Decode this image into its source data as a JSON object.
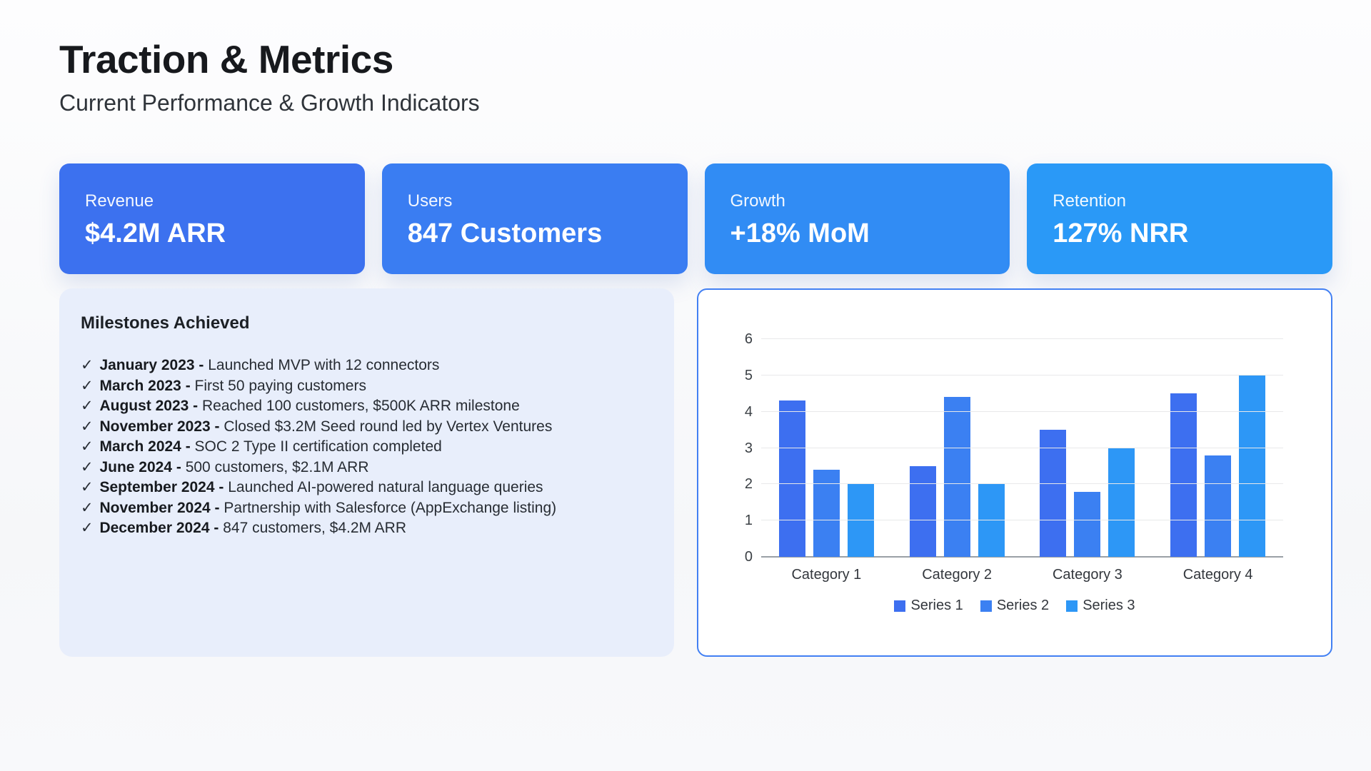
{
  "header": {
    "title": "Traction & Metrics",
    "subtitle": "Current Performance & Growth Indicators"
  },
  "metrics": {
    "cards": [
      {
        "label": "Revenue",
        "value": "$4.2M ARR",
        "color": "#3C71EF"
      },
      {
        "label": "Users",
        "value": "847 Customers",
        "color": "#3A7DF2"
      },
      {
        "label": "Growth",
        "value": "+18% MoM",
        "color": "#318CF4"
      },
      {
        "label": "Retention",
        "value": "127% NRR",
        "color": "#2A99F7"
      }
    ]
  },
  "milestones": {
    "heading": "Milestones Achieved",
    "check_glyph": "✓",
    "items": [
      {
        "label": "January 2023 -",
        "text": "Launched MVP with 12 connectors"
      },
      {
        "label": "March 2023 -",
        "text": "First 50 paying customers"
      },
      {
        "label": "August 2023 -",
        "text": "Reached 100 customers, $500K ARR milestone"
      },
      {
        "label": "November 2023 -",
        "text": "Closed $3.2M Seed round led by Vertex Ventures"
      },
      {
        "label": "March 2024 -",
        "text": "SOC 2 Type II certification completed"
      },
      {
        "label": "June 2024 -",
        "text": "500 customers, $2.1M ARR"
      },
      {
        "label": "September 2024 -",
        "text": "Launched AI-powered natural language queries"
      },
      {
        "label": "November 2024 -",
        "text": "Partnership with Salesforce (AppExchange listing)"
      },
      {
        "label": "December 2024 -",
        "text": "847 customers, $4.2M ARR"
      }
    ]
  },
  "chart_data": {
    "type": "bar",
    "categories": [
      "Category 1",
      "Category 2",
      "Category 3",
      "Category 4"
    ],
    "series": [
      {
        "name": "Series 1",
        "color": "#3D6FF0",
        "values": [
          4.3,
          2.5,
          3.5,
          4.5
        ]
      },
      {
        "name": "Series 2",
        "color": "#3B80F2",
        "values": [
          2.4,
          4.4,
          1.8,
          2.8
        ]
      },
      {
        "name": "Series 3",
        "color": "#2D97F6",
        "values": [
          2.0,
          2.0,
          3.0,
          5.0
        ]
      }
    ],
    "title": "",
    "xlabel": "",
    "ylabel": "",
    "ylim": [
      0,
      6
    ],
    "yticks": [
      0,
      1,
      2,
      3,
      4,
      5,
      6
    ],
    "grid": true,
    "legend_position": "bottom",
    "border_color": "#4280F3"
  }
}
